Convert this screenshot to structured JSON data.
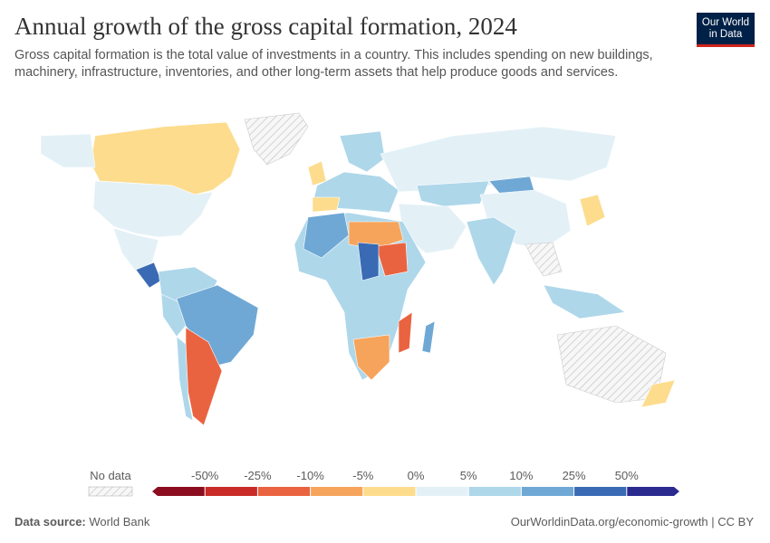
{
  "header": {
    "title": "Annual growth of the gross capital formation, 2024",
    "subtitle": "Gross capital formation is the total value of investments in a country. This includes spending on new buildings, machinery, infrastructure, inventories, and other long-term assets that help produce goods and services.",
    "logo": [
      "Our World",
      "in Data"
    ]
  },
  "legend": {
    "no_data_label": "No data",
    "ticks": [
      {
        "value": -50,
        "label": "-50%"
      },
      {
        "value": -25,
        "label": "-25%"
      },
      {
        "value": -10,
        "label": "-10%"
      },
      {
        "value": -5,
        "label": "-5%"
      },
      {
        "value": 0,
        "label": "0%"
      },
      {
        "value": 5,
        "label": "5%"
      },
      {
        "value": 10,
        "label": "10%"
      },
      {
        "value": 25,
        "label": "25%"
      },
      {
        "value": 50,
        "label": "50%"
      }
    ],
    "colors": [
      "#8b0d1f",
      "#c92b27",
      "#ea6340",
      "#f6a45c",
      "#fddc8d",
      "#e3f1f7",
      "#aed7ea",
      "#6fa8d5",
      "#3a6ab4",
      "#2b2a8f"
    ]
  },
  "footer": {
    "source_label": "Data source:",
    "source": "World Bank",
    "url": "OurWorldinData.org/economic-growth | CC BY"
  }
}
